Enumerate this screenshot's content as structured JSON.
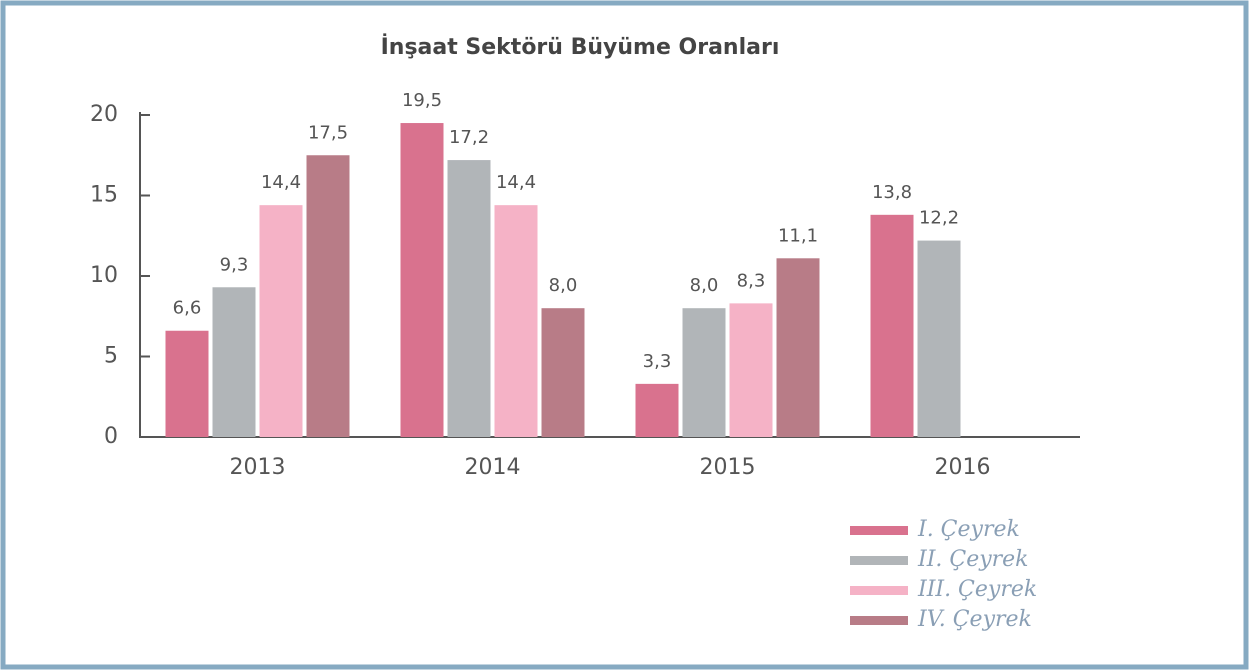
{
  "chart_data": {
    "type": "bar",
    "title": "İnşaat Sektörü Büyüme Oranları",
    "categories": [
      "2013",
      "2014",
      "2015",
      "2016"
    ],
    "series": [
      {
        "name": "I. Çeyrek",
        "color": "#d9728e",
        "values": [
          6.6,
          19.5,
          3.3,
          13.8
        ],
        "value_labels": [
          "6,6",
          "19,5",
          "3,3",
          "13,8"
        ]
      },
      {
        "name": "II. Çeyrek",
        "color": "#b1b5b8",
        "values": [
          9.3,
          17.2,
          8.0,
          12.2
        ],
        "value_labels": [
          "9,3",
          "17,2",
          "8,0",
          "12,2"
        ]
      },
      {
        "name": "III. Çeyrek",
        "color": "#f5b2c6",
        "values": [
          14.4,
          14.4,
          8.3,
          null
        ],
        "value_labels": [
          "14,4",
          "14,4",
          "8,3",
          null
        ]
      },
      {
        "name": "IV. Çeyrek",
        "color": "#b87c87",
        "values": [
          17.5,
          8.0,
          11.1,
          null
        ],
        "value_labels": [
          "17,5",
          "8,0",
          "11,1",
          null
        ]
      }
    ],
    "ylim": [
      0,
      20
    ],
    "yticks": [
      0,
      5,
      10,
      15,
      20
    ],
    "grid": false,
    "legend": "bottom-right"
  }
}
